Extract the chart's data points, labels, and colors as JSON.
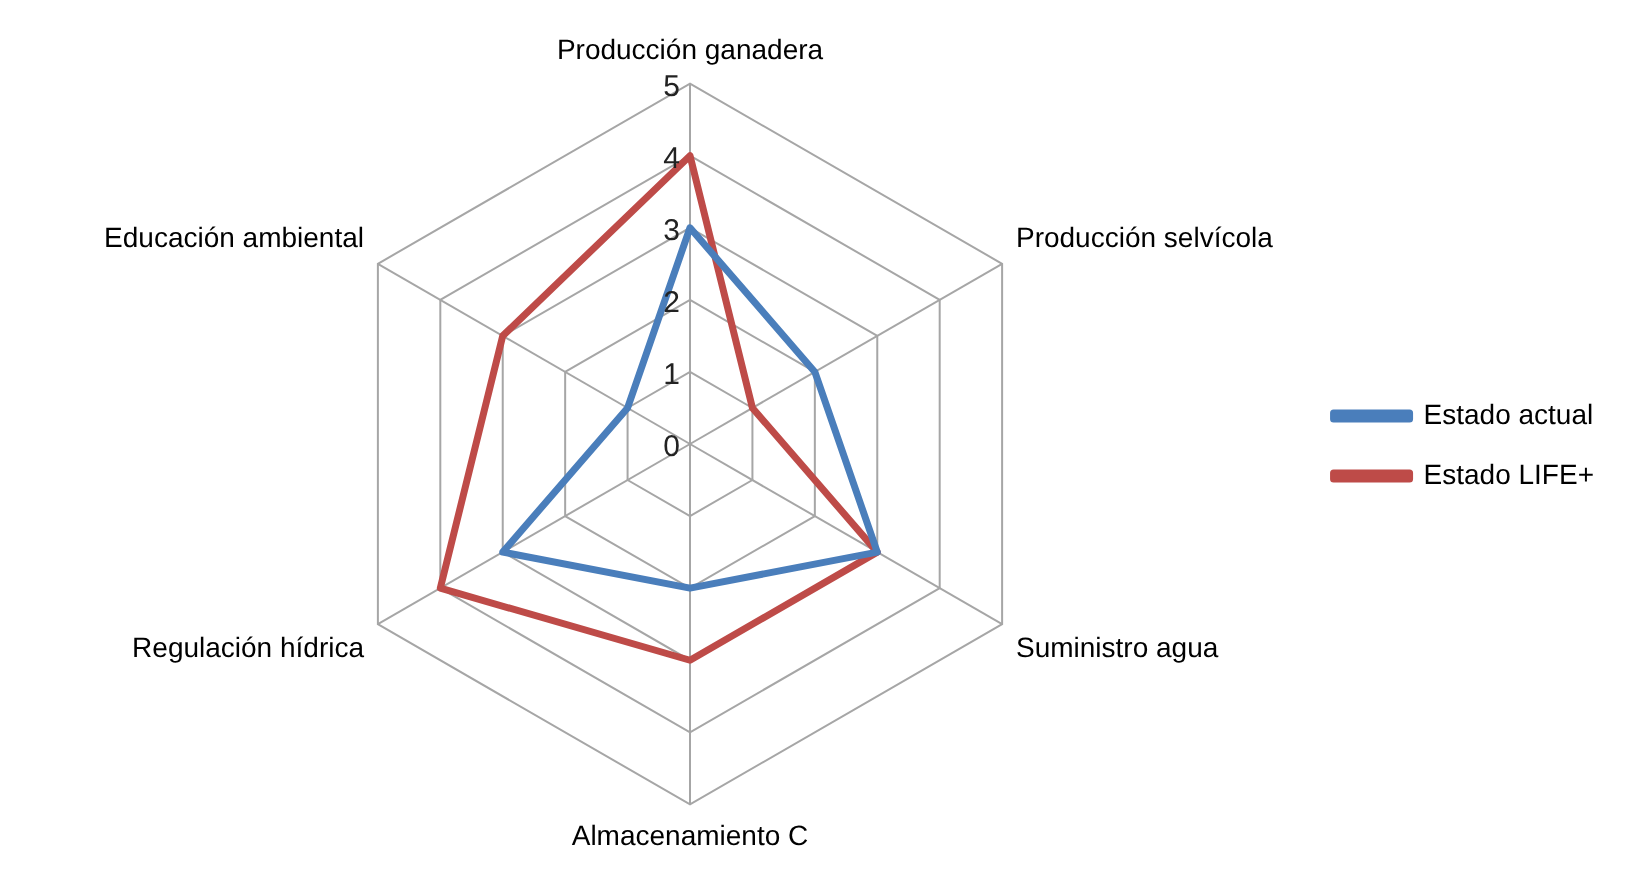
{
  "chart_data": {
    "type": "radar",
    "categories": [
      "Producción ganadera",
      "Producción selvícola",
      "Suministro agua",
      "Almacenamiento C",
      "Regulación hídrica",
      "Educación ambiental"
    ],
    "series": [
      {
        "name": "Estado actual",
        "color": "#4a7ebb",
        "values": [
          3,
          2,
          3,
          2,
          3,
          1
        ]
      },
      {
        "name": "Estado LIFE+",
        "color": "#be4b48",
        "values": [
          4,
          1,
          3,
          3,
          4,
          3
        ]
      }
    ],
    "ylim": [
      0,
      5
    ],
    "yticks": [
      0,
      1,
      2,
      3,
      4,
      5
    ],
    "grid": true,
    "legend": "right",
    "marker": "none"
  }
}
